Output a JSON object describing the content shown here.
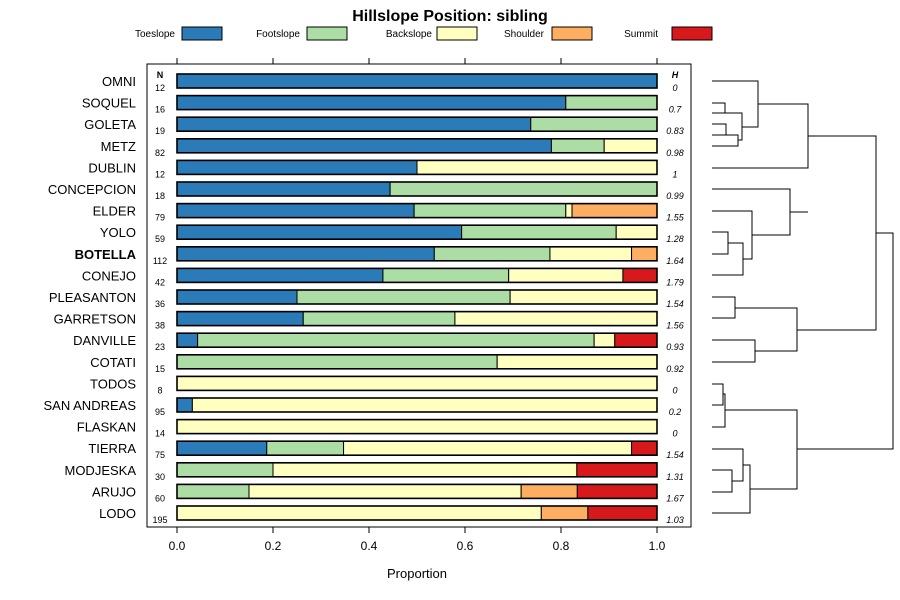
{
  "chart_data": {
    "type": "bar",
    "orientation": "horizontal",
    "stacked": true,
    "title": "Hillslope Position: sibling",
    "xlabel": "Proportion",
    "xlim": [
      0,
      1
    ],
    "x_ticks": [
      "0.0",
      "0.2",
      "0.4",
      "0.6",
      "0.8",
      "1.0"
    ],
    "legend_position": "top",
    "n_header": "N",
    "h_header": "H",
    "highlight": "BOTELLA",
    "series": [
      {
        "name": "Toeslope",
        "color": "#2b7bb9"
      },
      {
        "name": "Footslope",
        "color": "#abdda4"
      },
      {
        "name": "Backslope",
        "color": "#ffffbf"
      },
      {
        "name": "Shoulder",
        "color": "#fdae61"
      },
      {
        "name": "Summit",
        "color": "#d7191c"
      }
    ],
    "rows": [
      {
        "label": "OMNI",
        "n": "12",
        "h": "0",
        "values": [
          1.0,
          0,
          0,
          0,
          0
        ]
      },
      {
        "label": "SOQUEL",
        "n": "16",
        "h": "0.7",
        "values": [
          0.81,
          0.19,
          0,
          0,
          0
        ]
      },
      {
        "label": "GOLETA",
        "n": "19",
        "h": "0.83",
        "values": [
          0.737,
          0.263,
          0,
          0,
          0
        ]
      },
      {
        "label": "METZ",
        "n": "82",
        "h": "0.98",
        "values": [
          0.78,
          0.11,
          0.11,
          0,
          0
        ]
      },
      {
        "label": "DUBLIN",
        "n": "12",
        "h": "1",
        "values": [
          0.5,
          0,
          0.5,
          0,
          0
        ]
      },
      {
        "label": "CONCEPCION",
        "n": "18",
        "h": "0.99",
        "values": [
          0.444,
          0.556,
          0,
          0,
          0
        ]
      },
      {
        "label": "ELDER",
        "n": "79",
        "h": "1.55",
        "values": [
          0.494,
          0.316,
          0.013,
          0.177,
          0
        ]
      },
      {
        "label": "YOLO",
        "n": "59",
        "h": "1.28",
        "values": [
          0.593,
          0.322,
          0.085,
          0,
          0
        ]
      },
      {
        "label": "BOTELLA",
        "n": "112",
        "h": "1.64",
        "values": [
          0.536,
          0.241,
          0.17,
          0.053,
          0
        ]
      },
      {
        "label": "CONEJO",
        "n": "42",
        "h": "1.79",
        "values": [
          0.429,
          0.262,
          0.238,
          0,
          0.071
        ]
      },
      {
        "label": "PLEASANTON",
        "n": "36",
        "h": "1.54",
        "values": [
          0.25,
          0.444,
          0.306,
          0,
          0
        ]
      },
      {
        "label": "GARRETSON",
        "n": "38",
        "h": "1.56",
        "values": [
          0.263,
          0.316,
          0.421,
          0,
          0
        ]
      },
      {
        "label": "DANVILLE",
        "n": "23",
        "h": "0.93",
        "values": [
          0.043,
          0.826,
          0.043,
          0,
          0.088
        ]
      },
      {
        "label": "COTATI",
        "n": "15",
        "h": "0.92",
        "values": [
          0,
          0.667,
          0.333,
          0,
          0
        ]
      },
      {
        "label": "TODOS",
        "n": "8",
        "h": "0",
        "values": [
          0,
          0,
          1.0,
          0,
          0
        ]
      },
      {
        "label": "SAN ANDREAS",
        "n": "95",
        "h": "0.2",
        "values": [
          0.032,
          0,
          0.968,
          0,
          0
        ]
      },
      {
        "label": "FLASKAN",
        "n": "14",
        "h": "0",
        "values": [
          0,
          0,
          1.0,
          0,
          0
        ]
      },
      {
        "label": "TIERRA",
        "n": "75",
        "h": "1.54",
        "values": [
          0.187,
          0.16,
          0.6,
          0,
          0.053
        ]
      },
      {
        "label": "MODJESKA",
        "n": "30",
        "h": "1.31",
        "values": [
          0,
          0.2,
          0.633,
          0,
          0.167
        ]
      },
      {
        "label": "ARUJO",
        "n": "60",
        "h": "1.67",
        "values": [
          0,
          0.15,
          0.567,
          0.117,
          0.166
        ]
      },
      {
        "label": "LODO",
        "n": "195",
        "h": "1.03",
        "values": [
          0,
          0,
          0.759,
          0.097,
          0.144
        ]
      }
    ]
  }
}
